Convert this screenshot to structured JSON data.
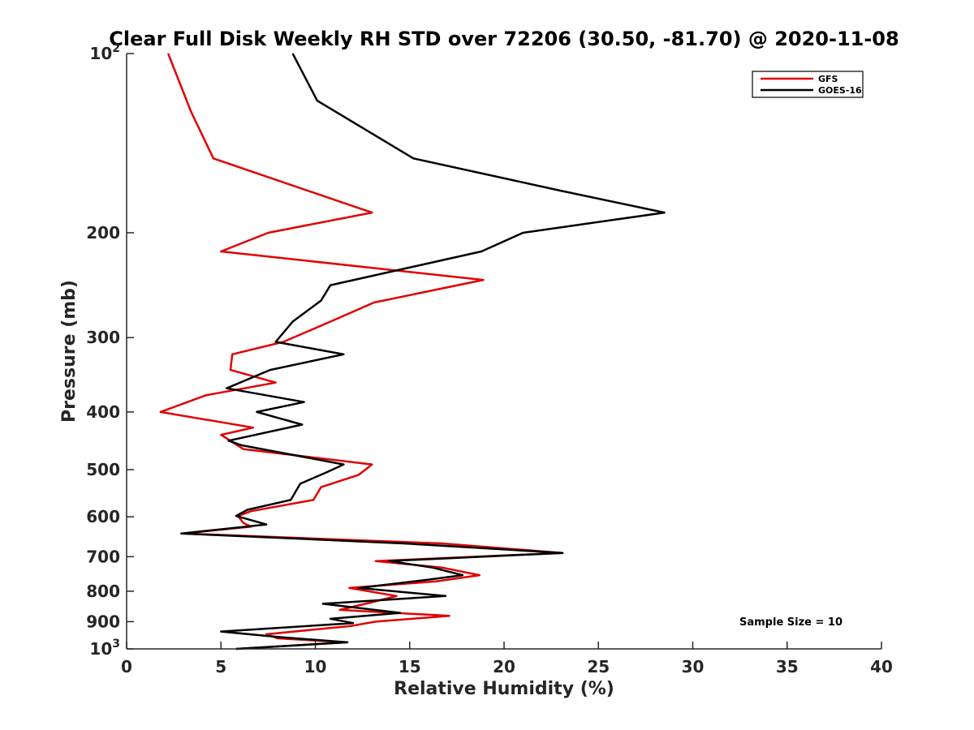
{
  "chart_data": {
    "type": "line",
    "title": "Clear Full Disk Weekly RH STD over 72206 (30.50, -81.70) @ 2020-11-08",
    "xlabel": "Relative Humidity (%)",
    "ylabel": "Pressure (mb)",
    "xlim": [
      0,
      40
    ],
    "ylim": [
      100,
      1000
    ],
    "y_scale": "log",
    "y_direction": "reversed",
    "x_ticks": [
      0,
      5,
      10,
      15,
      20,
      25,
      30,
      35,
      40
    ],
    "y_ticks": [
      {
        "value": 100,
        "base": "10",
        "exp": "2"
      },
      {
        "value": 200,
        "label": "200"
      },
      {
        "value": 300,
        "label": "300"
      },
      {
        "value": 400,
        "label": "400"
      },
      {
        "value": 500,
        "label": "500"
      },
      {
        "value": 600,
        "label": "600"
      },
      {
        "value": 700,
        "label": "700"
      },
      {
        "value": 800,
        "label": "800"
      },
      {
        "value": 900,
        "label": "900"
      },
      {
        "value": 1000,
        "base": "10",
        "exp": "3"
      }
    ],
    "legend_position": "top-right",
    "annotation": "Sample Size = 10",
    "series": [
      {
        "name": "GFS",
        "color": "#e00000",
        "points": [
          [
            2.2,
            100
          ],
          [
            3.4,
            125
          ],
          [
            4.6,
            150
          ],
          [
            13.0,
            185
          ],
          [
            7.5,
            200
          ],
          [
            5.0,
            215
          ],
          [
            18.9,
            240
          ],
          [
            13.1,
            262
          ],
          [
            10.8,
            282
          ],
          [
            8.3,
            305
          ],
          [
            5.6,
            320
          ],
          [
            5.5,
            340
          ],
          [
            7.9,
            357
          ],
          [
            4.2,
            375
          ],
          [
            1.8,
            400
          ],
          [
            6.7,
            425
          ],
          [
            5.0,
            437
          ],
          [
            6.2,
            462
          ],
          [
            13.0,
            490
          ],
          [
            12.3,
            510
          ],
          [
            10.3,
            535
          ],
          [
            9.9,
            562
          ],
          [
            9.5,
            565
          ],
          [
            6.6,
            587
          ],
          [
            5.9,
            598
          ],
          [
            6.2,
            615
          ],
          [
            6.6,
            623
          ],
          [
            3.0,
            640
          ],
          [
            16.7,
            665
          ],
          [
            23.1,
            690
          ],
          [
            13.2,
            712
          ],
          [
            16.7,
            730
          ],
          [
            18.7,
            752
          ],
          [
            16.4,
            770
          ],
          [
            11.8,
            790
          ],
          [
            14.3,
            815
          ],
          [
            13.0,
            835
          ],
          [
            11.3,
            860
          ],
          [
            17.1,
            880
          ],
          [
            13.2,
            900
          ],
          [
            11.9,
            915
          ],
          [
            7.4,
            945
          ],
          [
            8.0,
            960
          ],
          [
            11.7,
            975
          ],
          [
            5.8,
            1000
          ]
        ]
      },
      {
        "name": "GOES-16",
        "color": "#000000",
        "points": [
          [
            8.8,
            100
          ],
          [
            10.1,
            120
          ],
          [
            15.2,
            150
          ],
          [
            23.0,
            170
          ],
          [
            28.5,
            185
          ],
          [
            21.0,
            200
          ],
          [
            18.8,
            215
          ],
          [
            10.8,
            245
          ],
          [
            10.3,
            260
          ],
          [
            8.8,
            282
          ],
          [
            7.9,
            305
          ],
          [
            11.5,
            320
          ],
          [
            7.6,
            340
          ],
          [
            5.3,
            365
          ],
          [
            9.4,
            385
          ],
          [
            6.9,
            400
          ],
          [
            9.3,
            420
          ],
          [
            5.4,
            447
          ],
          [
            6.1,
            455
          ],
          [
            11.5,
            490
          ],
          [
            10.6,
            505
          ],
          [
            9.2,
            528
          ],
          [
            8.7,
            562
          ],
          [
            6.4,
            584
          ],
          [
            5.8,
            598
          ],
          [
            7.4,
            618
          ],
          [
            2.9,
            640
          ],
          [
            14.7,
            665
          ],
          [
            23.1,
            690
          ],
          [
            13.9,
            712
          ],
          [
            16.2,
            730
          ],
          [
            17.8,
            752
          ],
          [
            16.0,
            765
          ],
          [
            12.3,
            790
          ],
          [
            16.9,
            815
          ],
          [
            10.4,
            840
          ],
          [
            14.5,
            870
          ],
          [
            10.8,
            890
          ],
          [
            12.0,
            905
          ],
          [
            5.0,
            935
          ],
          [
            8.0,
            955
          ],
          [
            11.7,
            975
          ],
          [
            5.8,
            1000
          ]
        ]
      }
    ]
  }
}
